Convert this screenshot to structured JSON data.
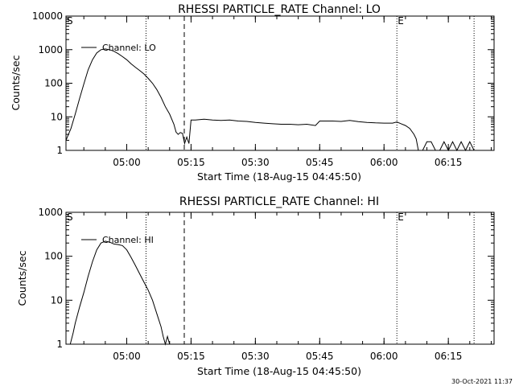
{
  "footer": {
    "timestamp": "30-Oct-2021 11:37"
  },
  "chart_data": [
    {
      "type": "line",
      "title": "RHESSI PARTICLE_RATE Channel: LO",
      "xlabel": "Start Time (18-Aug-15 04:45:50)",
      "ylabel": "Counts/sec",
      "xlim": [
        "04:45:50",
        "06:25:40"
      ],
      "ylim": [
        1,
        10000
      ],
      "yscale": "log",
      "x_ticks": [
        "05:00",
        "05:15",
        "05:30",
        "05:45",
        "06:00",
        "06:15"
      ],
      "y_ticks": [
        "1",
        "10",
        "100",
        "1000",
        "10000"
      ],
      "legend_label": "Channel: LO",
      "legend_position": "top-left",
      "markers": [
        {
          "label": "S",
          "time": "04:45:50",
          "style": "none"
        },
        {
          "label": "",
          "time": "05:04:30",
          "style": "dotted"
        },
        {
          "label": "",
          "time": "05:13:25",
          "style": "dashed"
        },
        {
          "label": "E",
          "time": "06:03:00",
          "style": "dotted"
        },
        {
          "label": "",
          "time": "06:21:00",
          "style": "dotted"
        }
      ],
      "series": [
        {
          "x": [
            "04:45:50",
            "04:47:00",
            "04:48:00",
            "04:49:00",
            "04:50:00",
            "04:51:00",
            "04:52:00",
            "04:53:00",
            "04:54:00",
            "04:55:00",
            "04:56:00",
            "04:57:00",
            "04:58:00",
            "04:59:00",
            "05:00:00",
            "05:01:00",
            "05:02:00",
            "05:03:00",
            "05:04:00",
            "05:05:00",
            "05:06:00",
            "05:07:00",
            "05:08:00",
            "05:09:00",
            "05:10:00",
            "05:11:00",
            "05:11:30",
            "05:12:00",
            "05:12:30",
            "05:13:00",
            "05:13:30",
            "05:14:00",
            "05:14:30",
            "05:15:00",
            "05:16:00",
            "05:18:00",
            "05:20:00",
            "05:22:00",
            "05:24:00",
            "05:26:00",
            "05:28:00",
            "05:30:00",
            "05:32:00",
            "05:34:00",
            "05:36:00",
            "05:38:00",
            "05:40:00",
            "05:42:00",
            "05:44:00",
            "05:45:00",
            "05:46:00",
            "05:48:00",
            "05:50:00",
            "05:52:00",
            "05:54:00",
            "05:56:00",
            "05:58:00",
            "06:00:00",
            "06:02:00",
            "06:03:00",
            "06:04:00",
            "06:05:00",
            "06:06:00",
            "06:07:00",
            "06:07:30",
            "06:08:00",
            "06:09:00",
            "06:10:00",
            "06:11:00",
            "06:12:00",
            "06:13:00",
            "06:14:00",
            "06:15:00",
            "06:16:00",
            "06:17:00",
            "06:18:00",
            "06:19:00",
            "06:20:00",
            "06:21:00"
          ],
          "y": [
            2,
            4.5,
            12,
            35,
            95,
            250,
            500,
            800,
            1000,
            1050,
            1000,
            900,
            760,
            620,
            500,
            380,
            300,
            240,
            190,
            140,
            100,
            65,
            38,
            20,
            12,
            6,
            3.5,
            3,
            3.4,
            3.2,
            1.6,
            2.5,
            1.6,
            8,
            8,
            8.5,
            8,
            7.8,
            8,
            7.5,
            7.3,
            6.8,
            6.5,
            6.2,
            6,
            6,
            5.8,
            6,
            5.5,
            7.5,
            7.5,
            7.5,
            7.3,
            7.8,
            7.2,
            6.8,
            6.6,
            6.5,
            6.5,
            7,
            6.2,
            5.5,
            4.5,
            3,
            2.2,
            1,
            1,
            1.8,
            1.8,
            1,
            1,
            1.8,
            1,
            1.8,
            1,
            1.8,
            1,
            1.8,
            1
          ]
        }
      ]
    },
    {
      "type": "line",
      "title": "RHESSI PARTICLE_RATE Channel: HI",
      "xlabel": "Start Time (18-Aug-15 04:45:50)",
      "ylabel": "Counts/sec",
      "xlim": [
        "04:45:50",
        "06:25:40"
      ],
      "ylim": [
        1,
        1000
      ],
      "yscale": "log",
      "x_ticks": [
        "05:00",
        "05:15",
        "05:30",
        "05:45",
        "06:00",
        "06:15"
      ],
      "y_ticks": [
        "1",
        "10",
        "100",
        "1000"
      ],
      "legend_label": "Channel: HI",
      "legend_position": "top-left",
      "markers": [
        {
          "label": "S",
          "time": "04:45:50",
          "style": "none"
        },
        {
          "label": "",
          "time": "05:04:30",
          "style": "dotted"
        },
        {
          "label": "",
          "time": "05:13:25",
          "style": "dashed"
        },
        {
          "label": "E",
          "time": "06:03:00",
          "style": "dotted"
        },
        {
          "label": "",
          "time": "06:21:00",
          "style": "dotted"
        }
      ],
      "series": [
        {
          "x": [
            "04:46:50",
            "04:47:30",
            "04:48:00",
            "04:49:00",
            "04:50:00",
            "04:51:00",
            "04:52:00",
            "04:53:00",
            "04:54:00",
            "04:55:00",
            "04:56:00",
            "04:57:00",
            "04:58:00",
            "04:59:00",
            "05:00:00",
            "05:01:00",
            "05:02:00",
            "05:03:00",
            "05:04:00",
            "05:05:00",
            "05:06:00",
            "05:07:00",
            "05:08:00",
            "05:08:30",
            "05:09:00",
            "05:09:30",
            "05:10:00"
          ],
          "y": [
            1,
            1.8,
            3,
            7,
            15,
            35,
            75,
            140,
            200,
            220,
            210,
            190,
            185,
            175,
            140,
            95,
            62,
            40,
            26,
            17,
            10,
            5,
            2.5,
            1.5,
            1,
            1.5,
            1
          ]
        }
      ]
    }
  ]
}
